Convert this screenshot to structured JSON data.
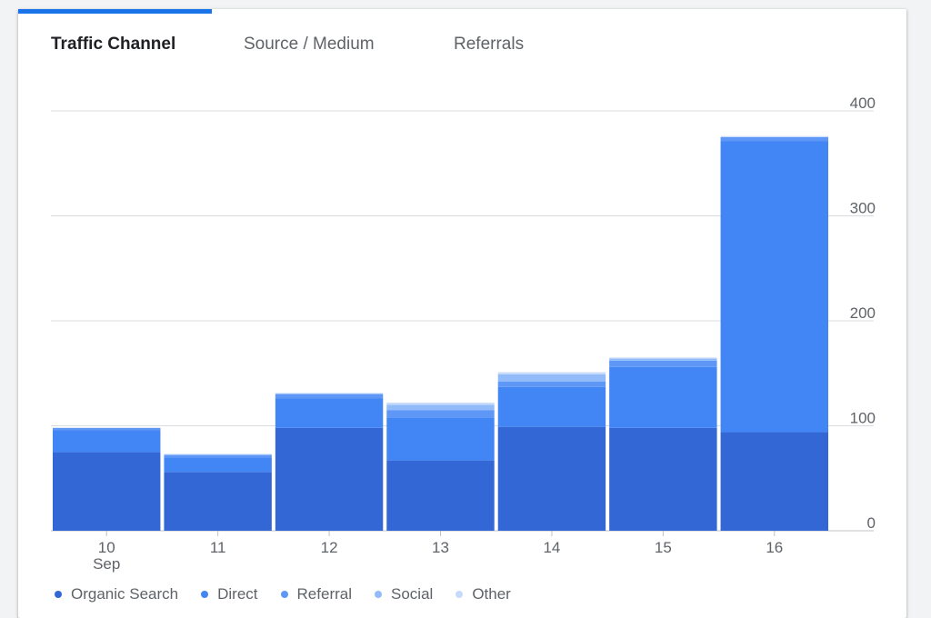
{
  "tabs": [
    {
      "label": "Traffic Channel",
      "active": true
    },
    {
      "label": "Source / Medium",
      "active": false
    },
    {
      "label": "Referrals",
      "active": false
    }
  ],
  "colors": {
    "accent": "#1a73e8",
    "series": [
      "#3367d6",
      "#4285f4",
      "#5e97f6",
      "#91bbf9",
      "#c6dafc"
    ]
  },
  "chart_data": {
    "type": "bar",
    "stacked": true,
    "categories": [
      "10",
      "11",
      "12",
      "13",
      "14",
      "15",
      "16"
    ],
    "category_sublabels": [
      "Sep",
      "",
      "",
      "",
      "",
      "",
      ""
    ],
    "series": [
      {
        "name": "Organic Search",
        "values": [
          75,
          56,
          98,
          67,
          99,
          98,
          94
        ]
      },
      {
        "name": "Direct",
        "values": [
          21,
          14,
          28,
          41,
          38,
          58,
          277
        ]
      },
      {
        "name": "Referral",
        "values": [
          2,
          2,
          4,
          7,
          5,
          6,
          4
        ]
      },
      {
        "name": "Social",
        "values": [
          0,
          1,
          1,
          5,
          7,
          2,
          0
        ]
      },
      {
        "name": "Other",
        "values": [
          0,
          0,
          0,
          2,
          2,
          1,
          1
        ]
      }
    ],
    "ylim": [
      0,
      400
    ],
    "yticks": [
      0,
      100,
      200,
      300,
      400
    ],
    "ytick_labels": [
      "0",
      "100",
      "200",
      "300",
      "400"
    ],
    "y_axis_position": "right",
    "grid": true,
    "legend_position": "bottom-left"
  }
}
